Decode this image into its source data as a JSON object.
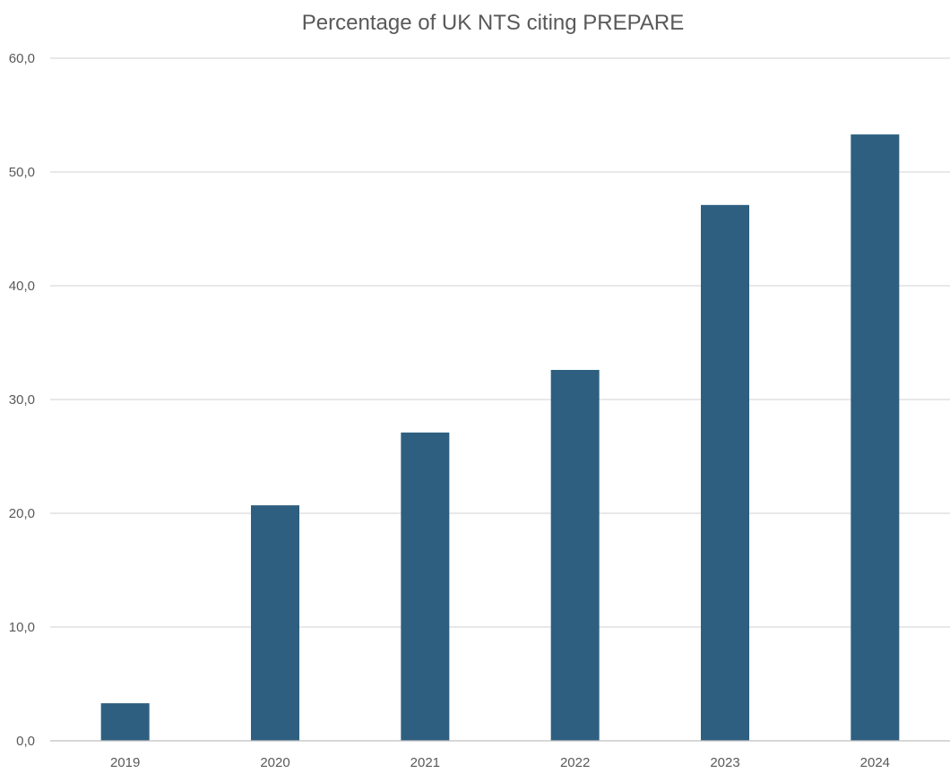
{
  "chart_data": {
    "type": "bar",
    "title": "Percentage of UK NTS citing PREPARE",
    "xlabel": "",
    "ylabel": "",
    "categories": [
      "2019",
      "2020",
      "2021",
      "2022",
      "2023",
      "2024"
    ],
    "values": [
      3.3,
      20.7,
      27.1,
      32.6,
      47.1,
      53.3
    ],
    "ylim": [
      0,
      60
    ],
    "yticks": [
      "0,0",
      "10,0",
      "20,0",
      "30,0",
      "40,0",
      "50,0",
      "60,0"
    ],
    "grid": true,
    "legend": "none",
    "colors": {
      "bar": "#2e5f80",
      "grid": "#d9d9d9",
      "axis": "#bfbfbf",
      "text": "#595959",
      "title": "#595959"
    }
  }
}
